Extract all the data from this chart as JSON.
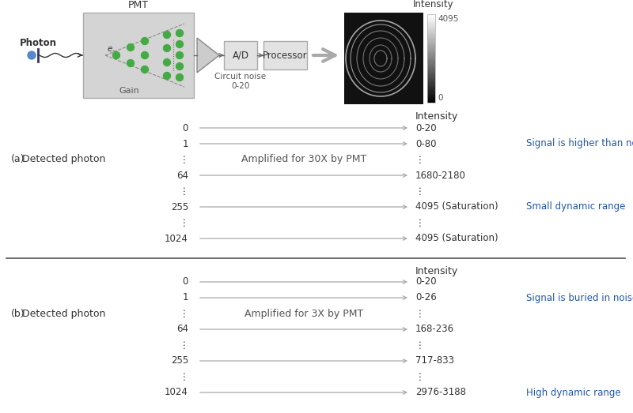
{
  "bg_color": "#ffffff",
  "section_a": {
    "label": "(a)",
    "detected_photon_label": "Detected photon",
    "amplify_label": "Amplified for 30X by PMT",
    "intensity_label": "Intensity",
    "rows": [
      {
        "left": "0",
        "right": "0-20",
        "note": "",
        "note_color": "#2255aa",
        "has_arrow": true
      },
      {
        "left": "1",
        "right": "0-80",
        "note": "Signal is higher than noise",
        "note_color": "#2255aa",
        "has_arrow": true
      },
      {
        "left": "⋮",
        "right": "⋮",
        "note": "",
        "note_color": "#2255aa",
        "has_arrow": false
      },
      {
        "left": "64",
        "right": "1680-2180",
        "note": "",
        "note_color": "#2255aa",
        "has_arrow": true
      },
      {
        "left": "⋮",
        "right": "⋮",
        "note": "",
        "note_color": "#2255aa",
        "has_arrow": false
      },
      {
        "left": "255",
        "right": "4095 (Saturation)",
        "note": "Small dynamic range",
        "note_color": "#2255aa",
        "has_arrow": true
      },
      {
        "left": "⋮",
        "right": "⋮",
        "note": "",
        "note_color": "#2255aa",
        "has_arrow": false
      },
      {
        "left": "1024",
        "right": "4095 (Saturation)",
        "note": "",
        "note_color": "#2255aa",
        "has_arrow": true
      }
    ]
  },
  "section_b": {
    "label": "(b)",
    "detected_photon_label": "Detected photon",
    "amplify_label": "Amplified for 3X by PMT",
    "intensity_label": "Intensity",
    "rows": [
      {
        "left": "0",
        "right": "0-20",
        "note": "",
        "note_color": "#2255aa",
        "has_arrow": true
      },
      {
        "left": "1",
        "right": "0-26",
        "note": "Signal is buried in noise",
        "note_color": "#2255aa",
        "has_arrow": true
      },
      {
        "left": "⋮",
        "right": "⋮",
        "note": "",
        "note_color": "#2255aa",
        "has_arrow": false
      },
      {
        "left": "64",
        "right": "168-236",
        "note": "",
        "note_color": "#2255aa",
        "has_arrow": true
      },
      {
        "left": "⋮",
        "right": "⋮",
        "note": "",
        "note_color": "#2255aa",
        "has_arrow": false
      },
      {
        "left": "255",
        "right": "717-833",
        "note": "",
        "note_color": "#2255aa",
        "has_arrow": true
      },
      {
        "left": "⋮",
        "right": "⋮",
        "note": "",
        "note_color": "#2255aa",
        "has_arrow": false
      },
      {
        "left": "1024",
        "right": "2976-3188",
        "note": "High dynamic range",
        "note_color": "#2255aa",
        "has_arrow": true
      }
    ]
  },
  "arrow_color": "#aaaaaa",
  "divider_color": "#555555",
  "text_color": "#333333",
  "pmt_label": "PMT",
  "gain_label": "Gain",
  "photon_label": "Photon",
  "ad_label": "A/D",
  "proc_label": "Processor",
  "circuit_label": "Circuit noise\n0-20",
  "intensity_top": "4095",
  "intensity_bot": "0",
  "cb_label": "Intensity"
}
